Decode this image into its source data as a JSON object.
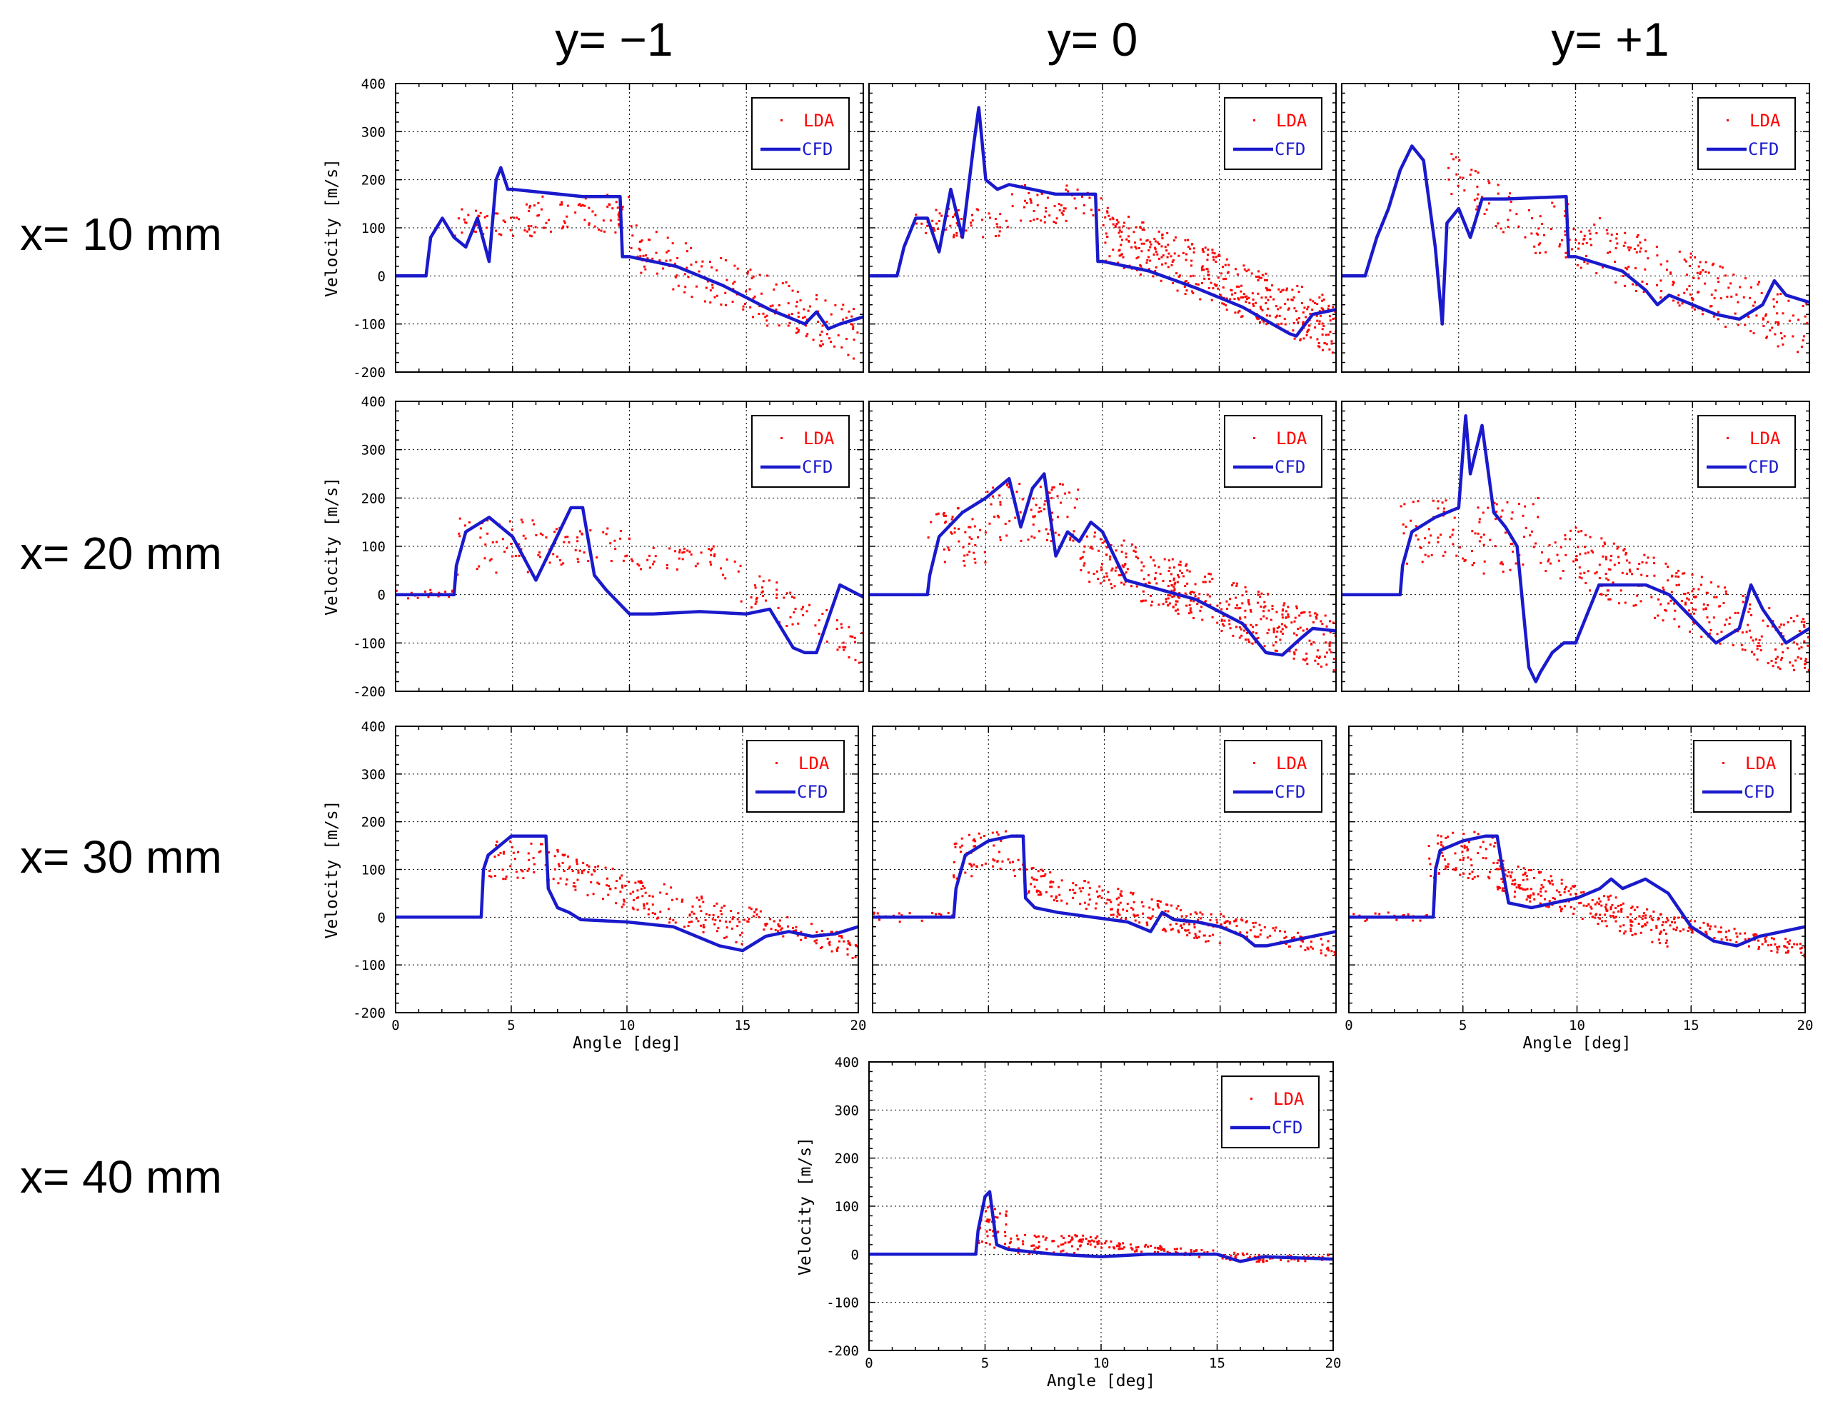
{
  "figure": {
    "column_titles": [
      "y= −1",
      "y= 0",
      "y= +1"
    ],
    "row_titles": [
      "x= 10 mm",
      "x= 20 mm",
      "x= 30 mm",
      "x= 40 mm"
    ]
  },
  "colors": {
    "lda": "#ff0000",
    "cfd": "#1a1acc"
  },
  "chart_data": [
    {
      "id": "x10_ym1",
      "type": "scatter",
      "row": "x= 10 mm",
      "column": "y= −1",
      "xlabel": "",
      "ylabel": "Velocity [m/s]",
      "xlim": [
        0,
        20
      ],
      "ylim": [
        -200,
        400
      ],
      "xticks": [
        "0",
        "5",
        "10",
        "15",
        "20"
      ],
      "yticks": [
        "-200",
        "-100",
        "0",
        "100",
        "200",
        "300",
        "400"
      ],
      "show_xticklabels": false,
      "show_yticklabels": true,
      "legend": [
        "LDA",
        "CFD"
      ],
      "legend_position": "top-right",
      "cfd": {
        "name": "CFD",
        "x": [
          0,
          1.3,
          1.5,
          2,
          2.5,
          3,
          3.5,
          4,
          4.3,
          4.5,
          4.8,
          5,
          6,
          8,
          9.6,
          9.7,
          10,
          12,
          14,
          16,
          17,
          17.5,
          18,
          18.5,
          19,
          20
        ],
        "y": [
          0,
          0,
          80,
          120,
          80,
          60,
          120,
          30,
          200,
          225,
          180,
          180,
          175,
          165,
          165,
          40,
          40,
          20,
          -20,
          -70,
          -90,
          -100,
          -75,
          -110,
          -100,
          -85
        ]
      },
      "lda": {
        "name": "LDA",
        "bands": [
          [
            2.5,
            6,
            50,
            80,
            150
          ],
          [
            6,
            10,
            60,
            90,
            170
          ],
          [
            10,
            20,
            180,
            -95,
            60
          ]
        ]
      }
    },
    {
      "id": "x10_y0",
      "type": "scatter",
      "row": "x= 10 mm",
      "column": "y= 0",
      "xlabel": "",
      "ylabel": "",
      "xlim": [
        0,
        20
      ],
      "ylim": [
        -200,
        400
      ],
      "xticks": [
        "0",
        "5",
        "10",
        "15",
        "20"
      ],
      "yticks": [
        "-200",
        "-100",
        "0",
        "100",
        "200",
        "300",
        "400"
      ],
      "show_xticklabels": false,
      "show_yticklabels": false,
      "legend": [
        "LDA",
        "CFD"
      ],
      "legend_position": "top-right",
      "cfd": {
        "name": "CFD",
        "x": [
          0,
          1.2,
          1.5,
          2,
          2.5,
          3,
          3.5,
          4,
          4.5,
          4.7,
          5,
          5.5,
          6,
          8,
          9.7,
          9.8,
          10,
          12,
          14,
          16,
          18,
          18.3,
          19,
          20
        ],
        "y": [
          0,
          0,
          60,
          120,
          120,
          50,
          180,
          80,
          280,
          350,
          200,
          180,
          190,
          170,
          170,
          30,
          30,
          10,
          -25,
          -65,
          -120,
          -125,
          -80,
          -70
        ]
      },
      "lda": {
        "name": "LDA",
        "bands": [
          [
            2,
            6,
            60,
            80,
            140
          ],
          [
            6,
            10,
            60,
            110,
            190
          ],
          [
            10,
            20,
            400,
            -75,
            90
          ]
        ]
      }
    },
    {
      "id": "x10_yp1",
      "type": "scatter",
      "row": "x= 10 mm",
      "column": "y= +1",
      "xlabel": "",
      "ylabel": "",
      "xlim": [
        0,
        20
      ],
      "ylim": [
        -200,
        400
      ],
      "xticks": [
        "0",
        "5",
        "10",
        "15",
        "20"
      ],
      "yticks": [
        "-200",
        "-100",
        "0",
        "100",
        "200",
        "300",
        "400"
      ],
      "show_xticklabels": false,
      "show_yticklabels": false,
      "legend": [
        "LDA",
        "CFD"
      ],
      "legend_position": "top-right",
      "cfd": {
        "name": "CFD",
        "x": [
          0,
          1,
          1.5,
          2,
          2.5,
          3,
          3.5,
          4,
          4.3,
          4.5,
          5,
          5.5,
          6,
          7,
          9.6,
          9.7,
          10,
          12,
          13,
          13.5,
          14,
          15,
          16,
          17,
          18,
          18.5,
          19,
          20
        ],
        "y": [
          0,
          0,
          80,
          140,
          220,
          270,
          240,
          60,
          -100,
          110,
          140,
          80,
          160,
          160,
          165,
          40,
          40,
          10,
          -30,
          -60,
          -40,
          -60,
          -80,
          -90,
          -60,
          -10,
          -40,
          -55
        ]
      },
      "lda": {
        "name": "LDA",
        "bands": [
          [
            4.5,
            9,
            60,
            90,
            220
          ],
          [
            9,
            20,
            220,
            -80,
            100
          ]
        ]
      }
    },
    {
      "id": "x20_ym1",
      "type": "scatter",
      "row": "x= 20 mm",
      "column": "y= −1",
      "xlabel": "",
      "ylabel": "Velocity [m/s]",
      "xlim": [
        0,
        20
      ],
      "ylim": [
        -200,
        400
      ],
      "xticks": [
        "0",
        "5",
        "10",
        "15",
        "20"
      ],
      "yticks": [
        "-200",
        "-100",
        "0",
        "100",
        "200",
        "300",
        "400"
      ],
      "show_xticklabels": false,
      "show_yticklabels": true,
      "legend": [
        "LDA",
        "CFD"
      ],
      "legend_position": "top-right",
      "cfd": {
        "name": "CFD",
        "x": [
          0,
          2.5,
          2.6,
          3,
          4,
          5,
          6,
          7,
          7.5,
          8,
          8.5,
          9,
          10,
          11,
          13,
          15,
          16,
          17,
          17.5,
          18,
          19,
          20
        ],
        "y": [
          0,
          0,
          60,
          130,
          160,
          120,
          30,
          130,
          180,
          180,
          40,
          10,
          -40,
          -40,
          -35,
          -40,
          -30,
          -110,
          -120,
          -120,
          20,
          -5
        ]
      },
      "lda": {
        "name": "LDA",
        "bands": [
          [
            0,
            2.5,
            20,
            -10,
            10
          ],
          [
            2.5,
            6,
            40,
            40,
            160
          ],
          [
            6,
            10,
            50,
            60,
            140
          ],
          [
            10,
            14,
            40,
            50,
            100
          ],
          [
            14,
            20,
            70,
            -80,
            40
          ]
        ]
      }
    },
    {
      "id": "x20_y0",
      "type": "scatter",
      "row": "x= 20 mm",
      "column": "y= 0",
      "xlabel": "",
      "ylabel": "",
      "xlim": [
        0,
        20
      ],
      "ylim": [
        -200,
        400
      ],
      "xticks": [
        "0",
        "5",
        "10",
        "15",
        "20"
      ],
      "yticks": [
        "-200",
        "-100",
        "0",
        "100",
        "200",
        "300",
        "400"
      ],
      "show_xticklabels": false,
      "show_yticklabels": false,
      "legend": [
        "LDA",
        "CFD"
      ],
      "legend_position": "top-right",
      "cfd": {
        "name": "CFD",
        "x": [
          0,
          2.5,
          2.6,
          3,
          4,
          5,
          6,
          6.5,
          7,
          7.5,
          8,
          8.5,
          9,
          9.5,
          10,
          11,
          14,
          16,
          17,
          17.7,
          18.5,
          19,
          20
        ],
        "y": [
          0,
          0,
          40,
          120,
          170,
          200,
          240,
          140,
          220,
          250,
          80,
          130,
          110,
          150,
          130,
          30,
          -10,
          -60,
          -120,
          -125,
          -90,
          -70,
          -75
        ]
      },
      "lda": {
        "name": "LDA",
        "bands": [
          [
            2.5,
            5,
            50,
            60,
            180
          ],
          [
            5,
            9,
            80,
            110,
            230
          ],
          [
            9,
            20,
            380,
            -75,
            90
          ]
        ]
      }
    },
    {
      "id": "x20_yp1",
      "type": "scatter",
      "row": "x= 20 mm",
      "column": "y= +1",
      "xlabel": "",
      "ylabel": "",
      "xlim": [
        0,
        20
      ],
      "ylim": [
        -200,
        400
      ],
      "xticks": [
        "0",
        "5",
        "10",
        "15",
        "20"
      ],
      "yticks": [
        "-200",
        "-100",
        "0",
        "100",
        "200",
        "300",
        "400"
      ],
      "show_xticklabels": false,
      "show_yticklabels": false,
      "legend": [
        "LDA",
        "CFD"
      ],
      "legend_position": "top-right",
      "cfd": {
        "name": "CFD",
        "x": [
          0,
          2.5,
          2.6,
          3,
          4,
          5,
          5.3,
          5.5,
          6,
          6.5,
          7,
          7.5,
          8,
          8.3,
          8.5,
          9,
          9.5,
          10,
          11,
          13,
          14,
          15,
          16,
          17,
          17.5,
          18,
          19,
          20
        ],
        "y": [
          0,
          0,
          60,
          130,
          160,
          180,
          370,
          250,
          350,
          170,
          140,
          100,
          -150,
          -180,
          -160,
          -120,
          -100,
          -100,
          20,
          20,
          0,
          -50,
          -100,
          -70,
          20,
          -30,
          -100,
          -70
        ]
      },
      "lda": {
        "name": "LDA",
        "bands": [
          [
            2.5,
            6,
            60,
            60,
            200
          ],
          [
            6,
            9,
            50,
            40,
            200
          ],
          [
            9,
            20,
            280,
            -80,
            100
          ]
        ]
      }
    },
    {
      "id": "x30_ym1",
      "type": "scatter",
      "row": "x= 30 mm",
      "column": "y= −1",
      "xlabel": "Angle [deg]",
      "ylabel": "Velocity [m/s]",
      "xlim": [
        0,
        20
      ],
      "ylim": [
        -200,
        400
      ],
      "xticks": [
        "0",
        "5",
        "10",
        "15",
        "20"
      ],
      "yticks": [
        "-200",
        "-100",
        "0",
        "100",
        "200",
        "300",
        "400"
      ],
      "show_xticklabels": true,
      "show_yticklabels": true,
      "legend": [
        "LDA",
        "CFD"
      ],
      "legend_position": "top-right",
      "cfd": {
        "name": "CFD",
        "x": [
          0,
          3.7,
          3.8,
          4,
          5,
          6,
          6.5,
          6.6,
          7,
          7.5,
          8,
          10,
          12,
          13,
          14,
          15,
          16,
          17,
          18,
          19,
          20
        ],
        "y": [
          0,
          0,
          100,
          130,
          170,
          170,
          170,
          60,
          20,
          10,
          -5,
          -10,
          -20,
          -40,
          -60,
          -70,
          -40,
          -30,
          -40,
          -35,
          -20
        ]
      },
      "lda": {
        "name": "LDA",
        "bands": [
          [
            4,
            6.5,
            40,
            80,
            160
          ],
          [
            6.5,
            15,
            180,
            0,
            110
          ],
          [
            15,
            20,
            80,
            -55,
            10
          ]
        ]
      }
    },
    {
      "id": "x30_y0",
      "type": "scatter",
      "row": "x= 30 mm",
      "column": "y= 0",
      "xlabel": "",
      "ylabel": "",
      "xlim": [
        0,
        20
      ],
      "ylim": [
        -200,
        400
      ],
      "xticks": [
        "0",
        "5",
        "10",
        "15",
        "20"
      ],
      "yticks": [
        "-200",
        "-100",
        "0",
        "100",
        "200",
        "300",
        "400"
      ],
      "show_xticklabels": false,
      "show_yticklabels": false,
      "legend": [
        "LDA",
        "CFD"
      ],
      "legend_position": "top-right",
      "cfd": {
        "name": "CFD",
        "x": [
          0,
          3.5,
          3.6,
          4,
          5,
          6,
          6.5,
          6.6,
          7,
          8,
          11,
          12,
          12.5,
          13,
          14,
          15,
          16,
          16.5,
          17,
          18,
          19,
          20
        ],
        "y": [
          0,
          0,
          60,
          130,
          160,
          170,
          170,
          40,
          20,
          10,
          -10,
          -30,
          10,
          -5,
          -10,
          -20,
          -40,
          -60,
          -60,
          -50,
          -40,
          -30
        ]
      },
      "lda": {
        "name": "LDA",
        "bands": [
          [
            0,
            3.5,
            20,
            -10,
            10
          ],
          [
            3.5,
            6.5,
            60,
            80,
            180
          ],
          [
            6.5,
            15,
            200,
            -10,
            80
          ],
          [
            15,
            20,
            80,
            -60,
            -10
          ]
        ]
      }
    },
    {
      "id": "x30_yp1",
      "type": "scatter",
      "row": "x= 30 mm",
      "column": "y= +1",
      "xlabel": "Angle [deg]",
      "ylabel": "",
      "xlim": [
        0,
        20
      ],
      "ylim": [
        -200,
        400
      ],
      "xticks": [
        "0",
        "5",
        "10",
        "15",
        "20"
      ],
      "yticks": [
        "-200",
        "-100",
        "0",
        "100",
        "200",
        "300",
        "400"
      ],
      "show_xticklabels": true,
      "show_yticklabels": false,
      "legend": [
        "LDA",
        "CFD"
      ],
      "legend_position": "top-right",
      "cfd": {
        "name": "CFD",
        "x": [
          0,
          3.7,
          3.8,
          4,
          5,
          6,
          6.5,
          6.7,
          7,
          8,
          10,
          11,
          11.5,
          12,
          13,
          14,
          15,
          16,
          17,
          18,
          19,
          20
        ],
        "y": [
          0,
          0,
          100,
          140,
          160,
          170,
          170,
          110,
          30,
          20,
          40,
          60,
          80,
          60,
          80,
          50,
          -20,
          -50,
          -60,
          -40,
          -30,
          -20
        ]
      },
      "lda": {
        "name": "LDA",
        "bands": [
          [
            0,
            3.5,
            20,
            -10,
            10
          ],
          [
            3.5,
            6.5,
            70,
            80,
            180
          ],
          [
            6.5,
            14,
            250,
            -10,
            90
          ],
          [
            14,
            20,
            100,
            -60,
            -10
          ]
        ]
      }
    },
    {
      "id": "x40_y0",
      "type": "scatter",
      "row": "x= 40 mm",
      "column": "y= 0",
      "xlabel": "Angle [deg]",
      "ylabel": "Velocity [m/s]",
      "xlim": [
        0,
        20
      ],
      "ylim": [
        -200,
        400
      ],
      "xticks": [
        "0",
        "5",
        "10",
        "15",
        "20"
      ],
      "yticks": [
        "-200",
        "-100",
        "0",
        "100",
        "200",
        "300",
        "400"
      ],
      "show_xticklabels": true,
      "show_yticklabels": true,
      "legend": [
        "LDA",
        "CFD"
      ],
      "legend_position": "top-right",
      "cfd": {
        "name": "CFD",
        "x": [
          0,
          4.6,
          4.7,
          5,
          5.2,
          5.5,
          6,
          7,
          8,
          10,
          12,
          15,
          16,
          17,
          20
        ],
        "y": [
          0,
          0,
          50,
          120,
          130,
          20,
          10,
          5,
          0,
          -5,
          0,
          0,
          -15,
          -5,
          -10
        ]
      },
      "lda": {
        "name": "LDA",
        "bands": [
          [
            4.7,
            6,
            40,
            10,
            100
          ],
          [
            6,
            10,
            80,
            0,
            40
          ],
          [
            10,
            17,
            100,
            -5,
            20
          ],
          [
            17,
            20,
            30,
            -15,
            0
          ]
        ]
      }
    }
  ]
}
